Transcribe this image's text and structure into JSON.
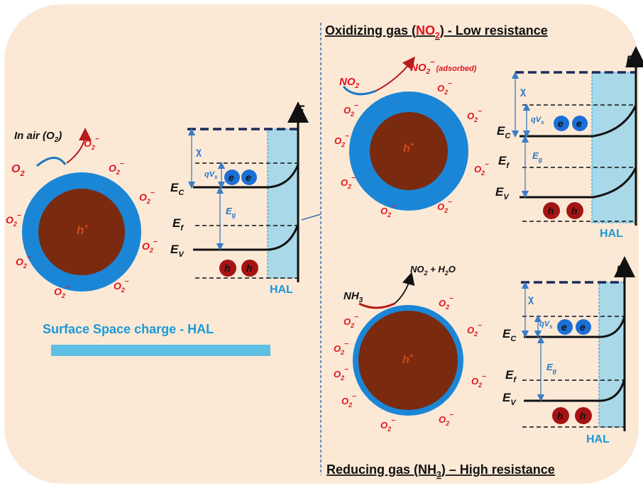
{
  "colors": {
    "background_panel": "#fbe9d6",
    "particle_shell": "#1b86d6",
    "particle_core": "#7a2a0e",
    "hal_region": "#a9d8e8",
    "title_blue": "#1a9ad6",
    "oxygen_red": "#e0141e",
    "electron": "#1b6fd6",
    "hole": "#a51414"
  },
  "left_panel": {
    "in_air": "In air (O",
    "in_air_sub": "2",
    "in_air_close": ")",
    "o2_label": "O",
    "o2_sub": "2",
    "core_label": "h",
    "core_sup": "+",
    "ads_o": "O",
    "ads_sub": "2",
    "ads_sup": "−",
    "surface_title": "Surface Space charge - HAL",
    "bar_color_name": "hal-bar"
  },
  "band_diagram": {
    "chi": "χ",
    "qvs": "qV",
    "qvs_sub": "s",
    "ec": "E",
    "ec_sub": "C",
    "ef": "E",
    "ef_sub": "f",
    "ev": "E",
    "ev_sub": "V",
    "eg": "E",
    "eg_sub": "g",
    "electron": "e",
    "hole": "h",
    "axis_label": "E",
    "hal": "HAL"
  },
  "top_right": {
    "title_pre": "Oxidizing gas (",
    "title_gas": "NO",
    "title_gas_sub": "2",
    "title_post": ")  - Low resistance",
    "gas_in": "NO",
    "gas_in_sub": "2",
    "gas_out": "NO",
    "gas_out_sub": "2",
    "gas_out_sup": "−",
    "gas_out_note": "(adsorbed)"
  },
  "bottom_right": {
    "title_pre": "Reducing gas (NH",
    "title_sub": "3",
    "title_post": ") – High resistance",
    "gas_in": "NH",
    "gas_in_sub": "3",
    "gas_out": "NO",
    "gas_out_sub": "2",
    "gas_out_mid": " + H",
    "gas_out_sub2": "2",
    "gas_out_end": "O"
  }
}
